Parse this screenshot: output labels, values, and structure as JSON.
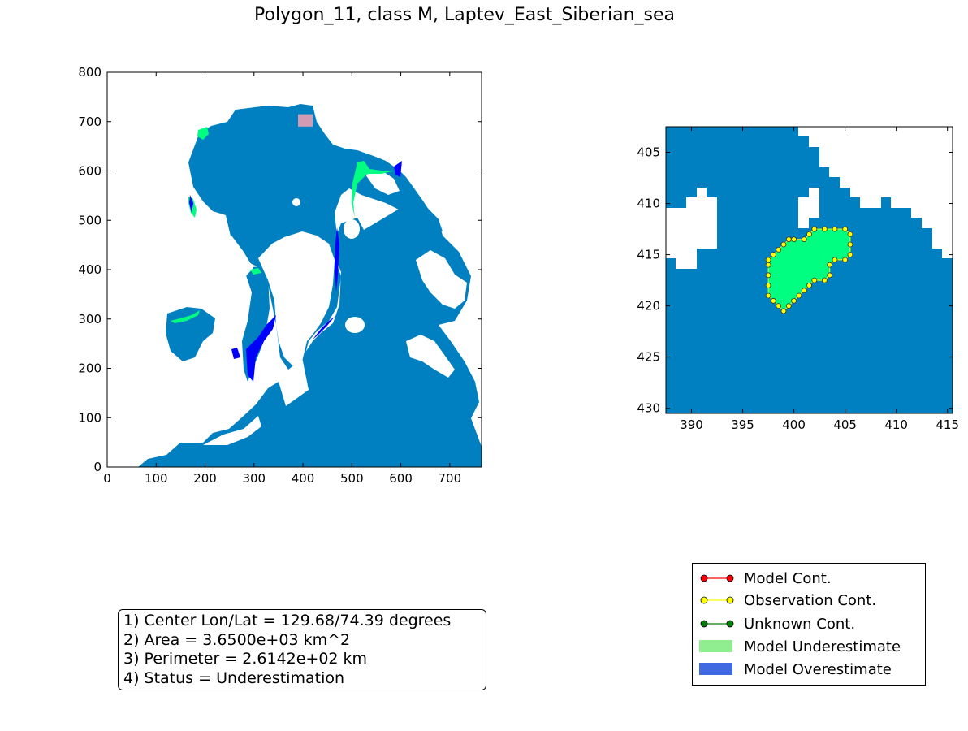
{
  "figure": {
    "title": "Polygon_11, class M, Laptev_East_Siberian_sea"
  },
  "colors": {
    "ocean_ice": "#0080c0",
    "land": "#ffffff",
    "underestimate_fill": "#00ff80",
    "overestimate_fill": "#0000ff",
    "legend_underestimate": "#90ee90",
    "legend_overestimate": "#4169e1",
    "model_contour": "#ff0000",
    "observation_contour": "#ffff00",
    "unknown_contour": "#008000",
    "highlight_box": "#f4a0b0"
  },
  "chart_data": [
    {
      "type": "heatmap",
      "name": "overview-map",
      "xlim": [
        0,
        765
      ],
      "ylim": [
        0,
        800
      ],
      "xticks": [
        0,
        100,
        200,
        300,
        400,
        500,
        600,
        700
      ],
      "yticks": [
        0,
        100,
        200,
        300,
        400,
        500,
        600,
        700,
        800
      ],
      "highlight_region": {
        "x": [
          390,
          420
        ],
        "y": [
          690,
          715
        ]
      }
    },
    {
      "type": "heatmap",
      "name": "zoom-map",
      "xlim": [
        387.5,
        415.5
      ],
      "ylim": [
        430.5,
        402.5
      ],
      "xticks": [
        390,
        395,
        400,
        405,
        410,
        415
      ],
      "yticks": [
        405,
        410,
        415,
        420,
        425,
        430
      ],
      "observation_contour": [
        [
          402,
          412.5
        ],
        [
          403,
          412.5
        ],
        [
          404,
          412.5
        ],
        [
          405,
          412.5
        ],
        [
          405.5,
          413
        ],
        [
          405.5,
          414
        ],
        [
          405.5,
          415
        ],
        [
          405,
          415.5
        ],
        [
          404,
          415.5
        ],
        [
          403.5,
          416
        ],
        [
          403.5,
          417
        ],
        [
          403,
          417.5
        ],
        [
          402,
          417.5
        ],
        [
          401.5,
          418
        ],
        [
          401,
          418.5
        ],
        [
          400.5,
          419
        ],
        [
          400,
          419.5
        ],
        [
          399.5,
          420
        ],
        [
          399,
          420.5
        ],
        [
          398.5,
          420
        ],
        [
          398,
          419.5
        ],
        [
          397.5,
          419
        ],
        [
          397.5,
          418
        ],
        [
          397.5,
          417
        ],
        [
          397.5,
          416
        ],
        [
          397.5,
          415.5
        ],
        [
          398,
          415
        ],
        [
          398.5,
          414.5
        ],
        [
          399,
          414
        ],
        [
          399.5,
          413.5
        ],
        [
          400,
          413.5
        ],
        [
          401,
          413.5
        ],
        [
          401.5,
          413
        ],
        [
          402,
          412.5
        ]
      ]
    }
  ],
  "info_box": {
    "line1": "1) Center Lon/Lat = 129.68/74.39 degrees",
    "line2": "2) Area = 3.6500e+03 km^2",
    "line3": "3) Perimeter = 2.6142e+02 km",
    "line4": "4) Status = Underestimation"
  },
  "legend": {
    "items": [
      {
        "label": "Model Cont.",
        "kind": "line",
        "color": "#ff0000"
      },
      {
        "label": "Observation Cont.",
        "kind": "line",
        "color": "#ffff00"
      },
      {
        "label": "Unknown Cont.",
        "kind": "line",
        "color": "#008000"
      },
      {
        "label": "Model Underestimate",
        "kind": "patch",
        "color": "#90ee90"
      },
      {
        "label": "Model Overestimate",
        "kind": "patch",
        "color": "#4169e1"
      }
    ]
  }
}
